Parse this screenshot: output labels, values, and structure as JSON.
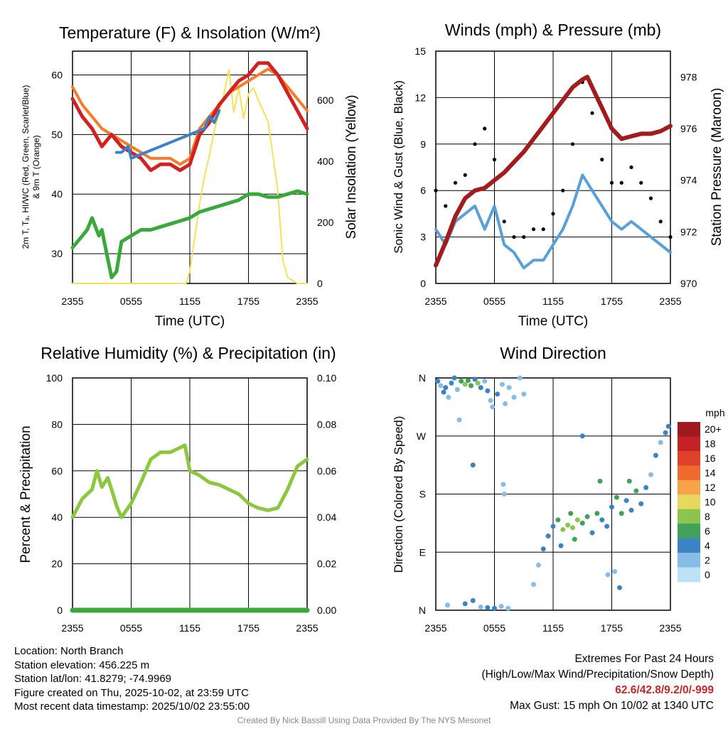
{
  "colors": {
    "temp": "#d32121",
    "dewpoint": "#3aa83a",
    "heat_index": "#3b82c4",
    "temp9m": "#f57c2a",
    "insolation": "#f7e15c",
    "wind": "#5a9fd6",
    "gust": "#000000",
    "pressure": "#a11d1d",
    "rh": "#8dc63f",
    "precip": "#3aa83a"
  },
  "charts": {
    "temp": {
      "title": "Temperature (F) & Insolation (W/m²)",
      "ylabel_line1": "2m T, Tₐ, HI/WC (Red, Green, Scarlet/Blue)",
      "ylabel_line2": "& 9m T (Orange)",
      "y2label": "Solar Insolation (Yellow)",
      "xlabel": "Time (UTC)"
    },
    "wind": {
      "title": "Winds (mph) & Pressure (mb)",
      "ylabel": "Sonic Wind & Gust (Blue, Black)",
      "y2label": "Station Pressure (Maroon)",
      "xlabel": "Time (UTC)"
    },
    "rh": {
      "title": "Relative Humidity (%) & Precipitation (in)",
      "ylabel": "Percent & Precipitation"
    },
    "dir": {
      "title": "Wind Direction",
      "ylabel": "Direction (Colored By Speed)",
      "legend_title": "mph"
    }
  },
  "chart_data": [
    {
      "type": "line",
      "name": "temperature_insolation",
      "x_ticks": [
        "2355",
        "0555",
        "1155",
        "1755",
        "2355"
      ],
      "x_range": [
        0,
        24
      ],
      "ylim": [
        25,
        64
      ],
      "y_ticks": [
        "30",
        "40",
        "50",
        "60"
      ],
      "y2lim": [
        0,
        760
      ],
      "y2_ticks": [
        "0",
        "200",
        "400",
        "600"
      ],
      "series": [
        {
          "name": "2m T",
          "color": "#d32121",
          "x": [
            0,
            1,
            2,
            3,
            4,
            5,
            6,
            7,
            8,
            9,
            10,
            11,
            12,
            13,
            14,
            15,
            16,
            17,
            18,
            19,
            20,
            21,
            22,
            23,
            24
          ],
          "values": [
            56,
            53,
            51,
            48,
            50,
            48,
            47,
            46,
            44,
            45,
            45,
            44,
            45,
            50,
            52,
            55,
            57,
            59,
            60,
            62,
            62,
            60,
            57,
            54,
            51
          ]
        },
        {
          "name": "Dew point",
          "color": "#3aa83a",
          "x": [
            0,
            1,
            1.5,
            2,
            2.7,
            3,
            3.5,
            4,
            4.5,
            5,
            6,
            7,
            8,
            9,
            10,
            11,
            12,
            13,
            14,
            15,
            16,
            17,
            18,
            19,
            20,
            21,
            22,
            23,
            24
          ],
          "values": [
            31,
            33,
            34,
            36,
            33,
            34,
            30,
            26,
            27,
            32,
            33,
            34,
            34,
            34.5,
            35,
            35.5,
            36,
            37,
            37.5,
            38,
            38.5,
            39,
            40,
            40,
            39.5,
            39.5,
            40,
            40.5,
            40
          ]
        },
        {
          "name": "HI/WC",
          "color": "#3b82c4",
          "x": [
            4.5,
            5,
            5.7,
            6,
            13.5,
            14,
            14.5,
            15
          ],
          "values": [
            47,
            47,
            48,
            46,
            51,
            53,
            52,
            54
          ]
        },
        {
          "name": "9m T",
          "color": "#f57c2a",
          "x": [
            0,
            1,
            2,
            3,
            4,
            5,
            6,
            7,
            8,
            9,
            10,
            11,
            12,
            13,
            14,
            15,
            16,
            17,
            18,
            19,
            20,
            21,
            22,
            23,
            24
          ],
          "values": [
            58,
            55,
            53,
            51,
            50,
            49,
            48,
            47,
            46,
            46,
            46,
            45,
            46,
            51,
            53,
            55,
            57,
            58,
            59,
            60,
            61,
            60,
            58,
            56,
            54
          ]
        },
        {
          "name": "Insolation",
          "color": "#f7e15c",
          "axis": "y2",
          "x": [
            0,
            11.6,
            12,
            12.5,
            13,
            13.5,
            14,
            14.5,
            15,
            15.5,
            16,
            16.5,
            17,
            17.5,
            18,
            18.5,
            19,
            20,
            20.5,
            21,
            21.5,
            22,
            23,
            24
          ],
          "values": [
            0,
            0,
            40,
            150,
            260,
            350,
            420,
            500,
            560,
            620,
            700,
            560,
            640,
            540,
            620,
            640,
            600,
            530,
            420,
            300,
            80,
            20,
            0,
            0
          ]
        }
      ]
    },
    {
      "type": "line",
      "name": "wind_pressure",
      "x_ticks": [
        "2355",
        "0555",
        "1155",
        "1755",
        "2355"
      ],
      "x_range": [
        0,
        24
      ],
      "ylim": [
        0,
        15
      ],
      "y_ticks": [
        "0",
        "3",
        "6",
        "9",
        "12",
        "15"
      ],
      "y2lim": [
        970,
        979
      ],
      "y2_ticks": [
        "970",
        "972",
        "974",
        "976",
        "978"
      ],
      "series": [
        {
          "name": "Sonic wind",
          "color": "#5a9fd6",
          "x": [
            0,
            1,
            2,
            3,
            4,
            5,
            6,
            7,
            8,
            9,
            10,
            11,
            12,
            13,
            14,
            15,
            16,
            17,
            18,
            19,
            20,
            21,
            22,
            23,
            24
          ],
          "values": [
            3.5,
            2.5,
            4,
            4.5,
            5,
            3.5,
            5,
            2.5,
            2,
            1,
            1.5,
            1.5,
            2.5,
            3.5,
            5,
            7,
            6,
            5,
            4,
            3.5,
            4,
            3.5,
            3,
            2.5,
            2
          ]
        },
        {
          "name": "Gust",
          "color": "#000000",
          "x": [
            0,
            1,
            2,
            3,
            4,
            5,
            6,
            7,
            8,
            9,
            10,
            11,
            12,
            13,
            14,
            15,
            16,
            17,
            18,
            19,
            20,
            21,
            22,
            23,
            24
          ],
          "values": [
            6,
            5,
            6.5,
            7,
            9,
            10,
            8,
            4,
            3,
            3,
            3.5,
            3.5,
            4.5,
            6,
            9,
            13,
            11,
            8,
            6.5,
            6.5,
            7.5,
            6.5,
            5.5,
            4,
            3
          ]
        },
        {
          "name": "Station pressure",
          "color": "#a11d1d",
          "axis": "y2",
          "x": [
            0,
            1,
            2,
            3,
            4,
            5,
            6,
            7,
            8,
            9,
            10,
            11,
            12,
            13,
            14,
            15,
            15.5,
            16,
            17,
            18,
            19,
            20,
            21,
            22,
            23,
            24
          ],
          "values": [
            970.7,
            971.6,
            972.6,
            973.3,
            973.6,
            973.7,
            974.0,
            974.3,
            974.7,
            975.1,
            975.6,
            976.1,
            976.6,
            977.1,
            977.6,
            977.9,
            978.0,
            977.6,
            976.8,
            976.0,
            975.6,
            975.7,
            975.8,
            975.8,
            975.9,
            976.1
          ]
        }
      ]
    },
    {
      "type": "line",
      "name": "humidity_precipitation",
      "x_ticks": [
        "2355",
        "0555",
        "1155",
        "1755",
        "2355"
      ],
      "x_range": [
        0,
        24
      ],
      "ylim": [
        0,
        100
      ],
      "y_ticks": [
        "0",
        "20",
        "40",
        "60",
        "80",
        "100"
      ],
      "y2lim": [
        0,
        0.1
      ],
      "y2_ticks": [
        "0.00",
        "0.02",
        "0.04",
        "0.06",
        "0.08",
        "0.10"
      ],
      "series": [
        {
          "name": "RH",
          "color": "#8dc63f",
          "x": [
            0,
            1,
            2,
            2.5,
            3,
            3.6,
            4,
            4.5,
            5,
            6,
            7,
            8,
            9,
            10,
            11,
            11.5,
            12,
            13,
            14,
            15,
            16,
            17,
            18,
            19,
            20,
            21,
            22,
            23,
            24
          ],
          "values": [
            40,
            48,
            52,
            60,
            53,
            57,
            52,
            45,
            40,
            46,
            55,
            65,
            68,
            68,
            70,
            71,
            60,
            58,
            55,
            54,
            52,
            50,
            46,
            44,
            43,
            44,
            52,
            62,
            65
          ]
        },
        {
          "name": "Precipitation",
          "color": "#3aa83a",
          "axis": "y2",
          "x": [
            0,
            24
          ],
          "values": [
            0,
            0
          ]
        }
      ]
    },
    {
      "type": "scatter",
      "name": "wind_direction",
      "x_ticks": [
        "2355",
        "0555",
        "1155",
        "1755",
        "2355"
      ],
      "x_range": [
        0,
        24
      ],
      "y_ticks": [
        "N",
        "E",
        "S",
        "W",
        "N"
      ],
      "ylim": [
        0,
        360
      ],
      "colorbar": {
        "labels": [
          "20+",
          "18",
          "16",
          "14",
          "12",
          "10",
          "8",
          "6",
          "4",
          "2",
          "0"
        ],
        "colors": [
          "#9e1a1f",
          "#c62126",
          "#e0412a",
          "#ef6a2e",
          "#f6a24a",
          "#e6d95e",
          "#8cc44e",
          "#3fa15a",
          "#3c83c3",
          "#86bde6",
          "#bde2f7"
        ]
      },
      "points": [
        {
          "x": 0.2,
          "dir": 355,
          "spd": 3
        },
        {
          "x": 0.5,
          "dir": 348,
          "spd": 2
        },
        {
          "x": 0.8,
          "dir": 338,
          "spd": 3
        },
        {
          "x": 1.0,
          "dir": 345,
          "spd": 4
        },
        {
          "x": 1.3,
          "dir": 330,
          "spd": 2
        },
        {
          "x": 1.6,
          "dir": 352,
          "spd": 4
        },
        {
          "x": 1.9,
          "dir": 360,
          "spd": 3
        },
        {
          "x": 2.2,
          "dir": 342,
          "spd": 2
        },
        {
          "x": 2.6,
          "dir": 355,
          "spd": 5
        },
        {
          "x": 3.0,
          "dir": 350,
          "spd": 7
        },
        {
          "x": 3.3,
          "dir": 356,
          "spd": 6
        },
        {
          "x": 3.6,
          "dir": 348,
          "spd": 5
        },
        {
          "x": 4.0,
          "dir": 358,
          "spd": 4
        },
        {
          "x": 4.3,
          "dir": 352,
          "spd": 7
        },
        {
          "x": 4.6,
          "dir": 345,
          "spd": 3
        },
        {
          "x": 5.0,
          "dir": 355,
          "spd": 2
        },
        {
          "x": 5.3,
          "dir": 340,
          "spd": 3
        },
        {
          "x": 5.6,
          "dir": 325,
          "spd": 2
        },
        {
          "x": 5.8,
          "dir": 315,
          "spd": 1
        },
        {
          "x": 6.3,
          "dir": 335,
          "spd": 3
        },
        {
          "x": 6.8,
          "dir": 350,
          "spd": 2
        },
        {
          "x": 7.1,
          "dir": 320,
          "spd": 1
        },
        {
          "x": 7.5,
          "dir": 345,
          "spd": 2
        },
        {
          "x": 8.0,
          "dir": 330,
          "spd": 1
        },
        {
          "x": 8.6,
          "dir": 360,
          "spd": 1
        },
        {
          "x": 9.0,
          "dir": 335,
          "spd": 2
        },
        {
          "x": 2.4,
          "dir": 295,
          "spd": 1
        },
        {
          "x": 1.2,
          "dir": 8,
          "spd": 1
        },
        {
          "x": 3.0,
          "dir": 10,
          "spd": 4
        },
        {
          "x": 3.8,
          "dir": 15,
          "spd": 3
        },
        {
          "x": 4.6,
          "dir": 5,
          "spd": 2
        },
        {
          "x": 5.3,
          "dir": 4,
          "spd": 3
        },
        {
          "x": 6.0,
          "dir": 3,
          "spd": 4
        },
        {
          "x": 6.7,
          "dir": 6,
          "spd": 2
        },
        {
          "x": 7.4,
          "dir": 3,
          "spd": 1
        },
        {
          "x": 3.8,
          "dir": 225,
          "spd": 3
        },
        {
          "x": 6.9,
          "dir": 195,
          "spd": 2
        },
        {
          "x": 7.0,
          "dir": 180,
          "spd": 1
        },
        {
          "x": 10.0,
          "dir": 40,
          "spd": 2
        },
        {
          "x": 10.5,
          "dir": 70,
          "spd": 2
        },
        {
          "x": 11.0,
          "dir": 95,
          "spd": 3
        },
        {
          "x": 11.5,
          "dir": 115,
          "spd": 4
        },
        {
          "x": 12.0,
          "dir": 130,
          "spd": 4
        },
        {
          "x": 12.5,
          "dir": 140,
          "spd": 5
        },
        {
          "x": 13.0,
          "dir": 125,
          "spd": 7
        },
        {
          "x": 13.5,
          "dir": 132,
          "spd": 8
        },
        {
          "x": 14.0,
          "dir": 128,
          "spd": 7
        },
        {
          "x": 14.5,
          "dir": 140,
          "spd": 8
        },
        {
          "x": 15.0,
          "dir": 135,
          "spd": 6
        },
        {
          "x": 15.5,
          "dir": 145,
          "spd": 5
        },
        {
          "x": 16.0,
          "dir": 120,
          "spd": 4
        },
        {
          "x": 16.5,
          "dir": 150,
          "spd": 5
        },
        {
          "x": 17.0,
          "dir": 140,
          "spd": 4
        },
        {
          "x": 17.5,
          "dir": 130,
          "spd": 3
        },
        {
          "x": 18.0,
          "dir": 160,
          "spd": 4
        },
        {
          "x": 18.5,
          "dir": 175,
          "spd": 5
        },
        {
          "x": 19.0,
          "dir": 150,
          "spd": 6
        },
        {
          "x": 19.5,
          "dir": 170,
          "spd": 4
        },
        {
          "x": 20.0,
          "dir": 155,
          "spd": 3
        },
        {
          "x": 20.5,
          "dir": 185,
          "spd": 5
        },
        {
          "x": 21.0,
          "dir": 165,
          "spd": 4
        },
        {
          "x": 21.5,
          "dir": 190,
          "spd": 3
        },
        {
          "x": 22.0,
          "dir": 210,
          "spd": 2
        },
        {
          "x": 22.5,
          "dir": 240,
          "spd": 3
        },
        {
          "x": 23.0,
          "dir": 260,
          "spd": 2
        },
        {
          "x": 23.5,
          "dir": 275,
          "spd": 4
        },
        {
          "x": 23.8,
          "dir": 285,
          "spd": 3
        },
        {
          "x": 15.0,
          "dir": 270,
          "spd": 4
        },
        {
          "x": 16.8,
          "dir": 200,
          "spd": 5
        },
        {
          "x": 18.3,
          "dir": 60,
          "spd": 2
        },
        {
          "x": 18.8,
          "dir": 35,
          "spd": 3
        },
        {
          "x": 17.6,
          "dir": 55,
          "spd": 1
        },
        {
          "x": 14.2,
          "dir": 110,
          "spd": 5
        },
        {
          "x": 13.8,
          "dir": 150,
          "spd": 6
        },
        {
          "x": 12.8,
          "dir": 100,
          "spd": 3
        },
        {
          "x": 19.8,
          "dir": 200,
          "spd": 5
        }
      ]
    }
  ],
  "footer": {
    "location": "Location: North Branch",
    "elevation": "Station elevation: 456.225 m",
    "latlon": "Station lat/lon: 41.8279; -74.9969",
    "created": "Figure created on Thu, 2025-10-02, at 23:59 UTC",
    "recent": "Most recent data timestamp: 2025/10/02 23:55:00",
    "extremes_title": "Extremes For Past 24 Hours",
    "extremes_sub": "(High/Low/Max Wind/Precipitation/Snow Depth)",
    "extremes_values": "62.6/42.8/9.2/0/-999",
    "max_gust": "Max Gust: 15 mph On 10/02 at 1340 UTC",
    "credit": "Created By Nick Bassill Using Data Provided By The NYS Mesonet"
  }
}
